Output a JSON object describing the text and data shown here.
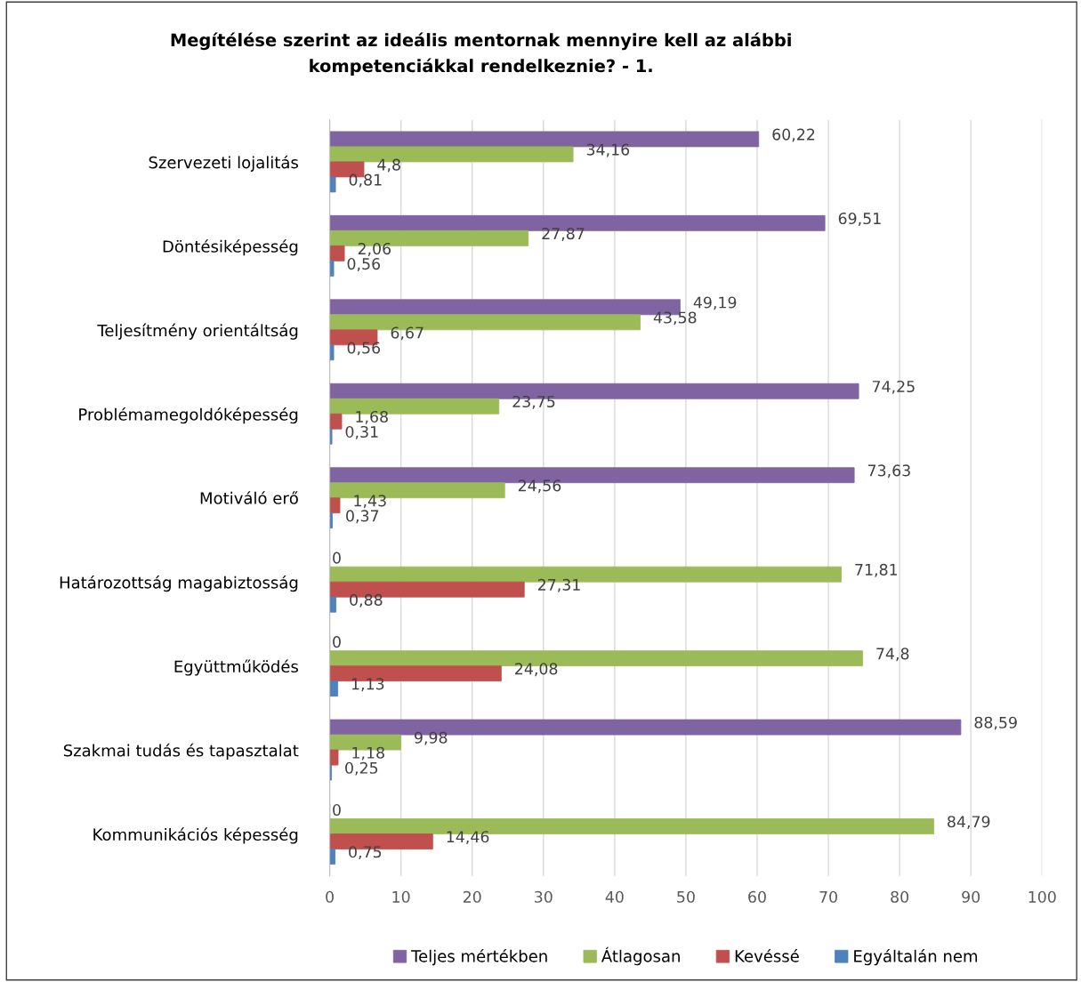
{
  "chart_data": {
    "type": "bar",
    "orientation": "horizontal",
    "title": "Megítélése szerint az ideális mentornak mennyire kell az alábbi\nkompetenciákkal rendelkeznie? - 1.",
    "categories": [
      "Szervezeti lojalitás",
      "Döntésiképesség",
      "Teljesítmény orientáltság",
      "Problémamegoldóképesség",
      "Motiváló erő",
      "Határozottság magabiztosság",
      "Együttműködés",
      "Szakmai tudás és tapasztalat",
      "Kommunikációs képesség"
    ],
    "series": [
      {
        "name": "Teljes mértékben",
        "color": "#8064a2",
        "values": [
          60.22,
          69.51,
          49.19,
          74.25,
          73.63,
          0,
          0,
          88.59,
          0
        ],
        "value_labels": [
          "60,22",
          "69,51",
          "49,19",
          "74,25",
          "73,63",
          "0",
          "0",
          "88,59",
          "0"
        ]
      },
      {
        "name": "Átlagosan",
        "color": "#9bbb59",
        "values": [
          34.16,
          27.87,
          43.58,
          23.75,
          24.56,
          71.81,
          74.8,
          9.98,
          84.79
        ],
        "value_labels": [
          "34,16",
          "27,87",
          "43,58",
          "23,75",
          "24,56",
          "71,81",
          "74,8",
          "9,98",
          "84,79"
        ]
      },
      {
        "name": "Kevéssé",
        "color": "#c0504d",
        "values": [
          4.8,
          2.06,
          6.67,
          1.68,
          1.43,
          27.31,
          24.08,
          1.18,
          14.46
        ],
        "value_labels": [
          "4,8",
          "2,06",
          "6,67",
          "1,68",
          "1,43",
          "27,31",
          "24,08",
          "1,18",
          "14,46"
        ]
      },
      {
        "name": "Egyáltalán nem",
        "color": "#4f81bd",
        "values": [
          0.81,
          0.56,
          0.56,
          0.31,
          0.37,
          0.88,
          1.13,
          0.25,
          0.75
        ],
        "value_labels": [
          "0,81",
          "0,56",
          "0,56",
          "0,31",
          "0,37",
          "0,88",
          "1,13",
          "0,25",
          "0,75"
        ]
      }
    ],
    "xlim": [
      0,
      100
    ],
    "xticks": [
      0,
      10,
      20,
      30,
      40,
      50,
      60,
      70,
      80,
      90,
      100
    ],
    "grid": "x",
    "legend": "bottom"
  }
}
